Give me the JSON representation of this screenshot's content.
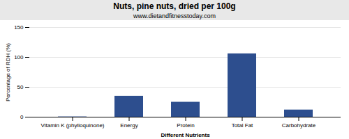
{
  "chart_data": {
    "type": "bar",
    "title": "Nuts, pine nuts, dried per 100g",
    "subtitle": "www.dietandfitnesstoday.com",
    "xlabel": "Different Nutrients",
    "ylabel": "Percentage of RDH (%)",
    "categories": [
      "Vitamin K (phylloquinone)",
      "Energy",
      "Protein",
      "Total Fat",
      "Carbohydrate"
    ],
    "values": [
      0.5,
      35,
      25,
      106,
      12
    ],
    "color": "#2d4e8e",
    "ylim": [
      0,
      150
    ],
    "yticks": [
      0,
      50,
      100,
      150
    ],
    "grid": true
  }
}
